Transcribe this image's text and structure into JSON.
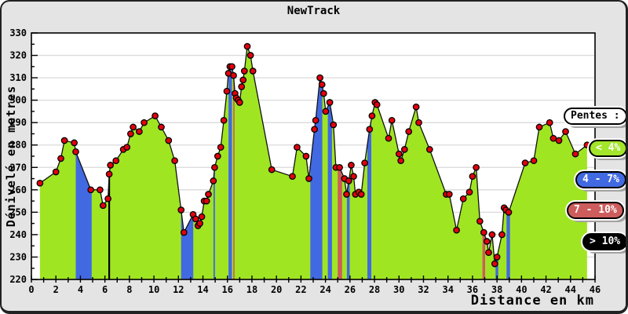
{
  "window": {
    "title": "NewTrack"
  },
  "axes": {
    "x": {
      "title": "Distance en km",
      "min": 0,
      "max": 46,
      "major_step": 2,
      "minor_step": 1,
      "tick_labels": [
        "0",
        "2",
        "4",
        "6",
        "8",
        "10",
        "12",
        "14",
        "16",
        "18",
        "20",
        "22",
        "24",
        "26",
        "28",
        "30",
        "32",
        "34",
        "36",
        "38",
        "40",
        "42",
        "44",
        "46"
      ]
    },
    "y": {
      "title": "Dénivelé en metres",
      "min": 220,
      "max": 330,
      "major_step": 10,
      "minor_step": 5,
      "tick_labels": [
        "220",
        "230",
        "240",
        "250",
        "260",
        "270",
        "280",
        "290",
        "300",
        "310",
        "320",
        "330"
      ]
    }
  },
  "legend": {
    "title": "Pentes :",
    "items": [
      {
        "label": "< 4%",
        "color": "#A3E52A"
      },
      {
        "label": "4 - 7%",
        "color": "#4169E1"
      },
      {
        "label": "7 - 10%",
        "color": "#CD5C5C"
      },
      {
        "label": "> 10%",
        "color": "#000000"
      }
    ]
  },
  "colors": {
    "canvas_bg": "#E4E4E4",
    "plot_bg": "#FFFFFF",
    "grid": "#DADADA",
    "area_fill": "#A0E522",
    "profile_line": "#111111",
    "point_fill": "#E3000E",
    "point_stroke": "#000000",
    "band_blue": "#4169E1",
    "band_red": "#CD5C5C",
    "band_black": "#000000",
    "axis": "#000000"
  },
  "chart_data": {
    "type": "area",
    "title": "NewTrack",
    "xlabel": "Distance en km",
    "ylabel": "Dénivelé en metres",
    "xlim": [
      0,
      46
    ],
    "ylim": [
      220,
      330
    ],
    "grid": "horizontal",
    "legend_position": "right",
    "series_note": "elevation profile; points are [km, metres]; slope_bands are vertical fills under the curve by slope category",
    "points": [
      [
        0.7,
        263
      ],
      [
        2.0,
        268
      ],
      [
        2.4,
        274
      ],
      [
        2.7,
        282
      ],
      [
        3.5,
        281
      ],
      [
        3.62,
        277
      ],
      [
        4.85,
        260
      ],
      [
        5.6,
        260
      ],
      [
        5.85,
        253
      ],
      [
        6.25,
        256
      ],
      [
        6.35,
        267
      ],
      [
        6.45,
        271
      ],
      [
        6.9,
        273
      ],
      [
        7.5,
        278
      ],
      [
        7.8,
        279
      ],
      [
        8.1,
        285
      ],
      [
        8.3,
        288
      ],
      [
        8.8,
        286
      ],
      [
        9.2,
        290
      ],
      [
        10.1,
        293
      ],
      [
        10.6,
        288
      ],
      [
        11.2,
        282
      ],
      [
        11.7,
        273
      ],
      [
        12.22,
        251
      ],
      [
        12.45,
        241
      ],
      [
        13.2,
        249
      ],
      [
        13.4,
        247
      ],
      [
        13.6,
        244
      ],
      [
        13.75,
        245
      ],
      [
        13.9,
        248
      ],
      [
        14.1,
        255
      ],
      [
        14.3,
        255
      ],
      [
        14.45,
        258
      ],
      [
        14.85,
        264
      ],
      [
        14.95,
        270
      ],
      [
        15.2,
        275
      ],
      [
        15.45,
        279
      ],
      [
        15.7,
        291
      ],
      [
        15.95,
        304
      ],
      [
        16.08,
        312
      ],
      [
        16.2,
        315
      ],
      [
        16.37,
        315
      ],
      [
        16.5,
        311
      ],
      [
        16.62,
        303
      ],
      [
        16.72,
        301
      ],
      [
        16.88,
        300
      ],
      [
        17.0,
        299
      ],
      [
        17.15,
        306
      ],
      [
        17.28,
        309
      ],
      [
        17.38,
        313
      ],
      [
        17.62,
        324
      ],
      [
        17.88,
        320
      ],
      [
        18.08,
        313
      ],
      [
        19.62,
        269
      ],
      [
        21.3,
        266
      ],
      [
        21.68,
        279
      ],
      [
        22.42,
        275
      ],
      [
        22.65,
        265
      ],
      [
        23.1,
        287
      ],
      [
        23.2,
        291
      ],
      [
        23.55,
        310
      ],
      [
        23.72,
        307
      ],
      [
        23.85,
        303
      ],
      [
        24.02,
        295
      ],
      [
        24.35,
        299
      ],
      [
        24.65,
        289
      ],
      [
        24.85,
        270
      ],
      [
        25.15,
        270
      ],
      [
        25.55,
        265
      ],
      [
        25.72,
        258
      ],
      [
        25.9,
        264
      ],
      [
        26.1,
        271
      ],
      [
        26.3,
        266
      ],
      [
        26.45,
        258
      ],
      [
        26.72,
        259
      ],
      [
        26.92,
        258
      ],
      [
        27.2,
        272
      ],
      [
        27.6,
        287
      ],
      [
        27.8,
        293
      ],
      [
        28.05,
        299
      ],
      [
        28.2,
        298
      ],
      [
        29.15,
        283
      ],
      [
        29.42,
        291
      ],
      [
        30.0,
        276
      ],
      [
        30.15,
        273
      ],
      [
        30.45,
        278
      ],
      [
        30.8,
        286
      ],
      [
        31.4,
        297
      ],
      [
        31.62,
        290
      ],
      [
        32.5,
        278
      ],
      [
        33.85,
        258
      ],
      [
        34.1,
        258
      ],
      [
        34.7,
        242
      ],
      [
        35.25,
        256
      ],
      [
        35.75,
        259
      ],
      [
        36.0,
        266
      ],
      [
        36.3,
        270
      ],
      [
        36.6,
        246
      ],
      [
        36.92,
        241
      ],
      [
        37.18,
        237
      ],
      [
        37.32,
        232
      ],
      [
        37.6,
        240
      ],
      [
        37.82,
        227
      ],
      [
        38.0,
        230
      ],
      [
        38.4,
        240
      ],
      [
        38.58,
        252
      ],
      [
        38.72,
        251
      ],
      [
        38.95,
        250
      ],
      [
        40.3,
        272
      ],
      [
        41.0,
        273
      ],
      [
        41.45,
        288
      ],
      [
        42.3,
        290
      ],
      [
        42.6,
        283
      ],
      [
        43.05,
        282
      ],
      [
        43.6,
        286
      ],
      [
        44.4,
        276
      ],
      [
        45.35,
        280
      ]
    ],
    "slope_bands": [
      {
        "from": 3.62,
        "to": 4.92,
        "category": "4 - 7%"
      },
      {
        "from": 6.28,
        "to": 6.42,
        "category": "> 10%"
      },
      {
        "from": 12.22,
        "to": 13.21,
        "category": "4 - 7%"
      },
      {
        "from": 14.86,
        "to": 14.98,
        "category": "4 - 7%"
      },
      {
        "from": 16.09,
        "to": 16.37,
        "category": "4 - 7%"
      },
      {
        "from": 16.47,
        "to": 16.58,
        "category": "7 - 10%"
      },
      {
        "from": 22.76,
        "to": 23.74,
        "category": "4 - 7%"
      },
      {
        "from": 24.19,
        "to": 24.53,
        "category": "4 - 7%"
      },
      {
        "from": 25.0,
        "to": 25.36,
        "category": "7 - 10%"
      },
      {
        "from": 25.75,
        "to": 25.98,
        "category": "4 - 7%"
      },
      {
        "from": 27.42,
        "to": 27.74,
        "category": "4 - 7%"
      },
      {
        "from": 36.81,
        "to": 37.03,
        "category": "7 - 10%"
      },
      {
        "from": 37.88,
        "to": 38.1,
        "category": "4 - 7%"
      },
      {
        "from": 38.78,
        "to": 39.06,
        "category": "4 - 7%"
      }
    ]
  }
}
